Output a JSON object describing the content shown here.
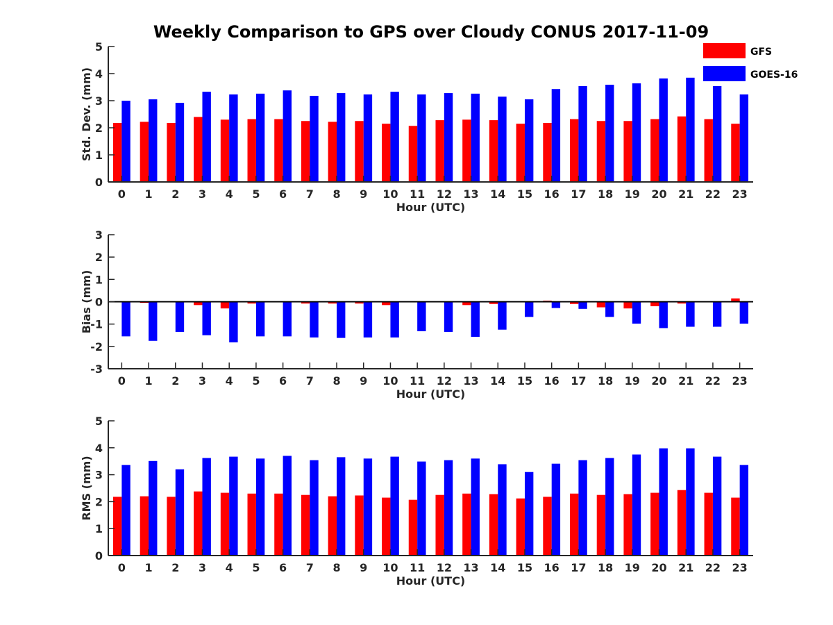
{
  "title": "Weekly Comparison to GPS over Cloudy CONUS 2017-11-09",
  "colors": {
    "GFS": "#ff0000",
    "GOES-16": "#0000ff",
    "axis": "#262626"
  },
  "legend": {
    "placement": "top-right",
    "entries": [
      "GFS",
      "GOES-16"
    ]
  },
  "chart_data": [
    {
      "type": "bar",
      "xlabel": "Hour (UTC)",
      "ylabel": "Std. Dev. (mm)",
      "ylim": [
        0,
        5
      ],
      "yticks": [
        0,
        1,
        2,
        3,
        4,
        5
      ],
      "grid": false,
      "categories": [
        "0",
        "1",
        "2",
        "3",
        "4",
        "5",
        "6",
        "7",
        "8",
        "9",
        "10",
        "11",
        "12",
        "13",
        "14",
        "15",
        "16",
        "17",
        "18",
        "19",
        "20",
        "21",
        "22",
        "23"
      ],
      "series": [
        {
          "name": "GFS",
          "values": [
            2.18,
            2.22,
            2.18,
            2.4,
            2.3,
            2.32,
            2.32,
            2.25,
            2.22,
            2.25,
            2.15,
            2.07,
            2.28,
            2.3,
            2.28,
            2.15,
            2.18,
            2.32,
            2.25,
            2.25,
            2.32,
            2.42,
            2.32,
            2.15
          ]
        },
        {
          "name": "GOES-16",
          "values": [
            3.0,
            3.05,
            2.92,
            3.33,
            3.23,
            3.26,
            3.38,
            3.18,
            3.28,
            3.23,
            3.33,
            3.23,
            3.28,
            3.26,
            3.15,
            3.05,
            3.43,
            3.54,
            3.59,
            3.64,
            3.82,
            3.85,
            3.54,
            3.23
          ]
        }
      ]
    },
    {
      "type": "bar",
      "xlabel": "Hour (UTC)",
      "ylabel": "Bias (mm)",
      "ylim": [
        -3,
        3
      ],
      "yticks": [
        -3,
        -2,
        -1,
        0,
        1,
        2,
        3
      ],
      "grid": false,
      "categories": [
        "0",
        "1",
        "2",
        "3",
        "4",
        "5",
        "6",
        "7",
        "8",
        "9",
        "10",
        "11",
        "12",
        "13",
        "14",
        "15",
        "16",
        "17",
        "18",
        "19",
        "20",
        "21",
        "22",
        "23"
      ],
      "series": [
        {
          "name": "GFS",
          "values": [
            -0.02,
            -0.05,
            -0.03,
            -0.15,
            -0.3,
            -0.08,
            -0.03,
            -0.08,
            -0.08,
            -0.08,
            -0.15,
            -0.03,
            0.03,
            -0.15,
            -0.1,
            -0.02,
            0.05,
            -0.1,
            -0.25,
            -0.3,
            -0.2,
            -0.08,
            -0.03,
            0.15
          ]
        },
        {
          "name": "GOES-16",
          "values": [
            -1.55,
            -1.75,
            -1.35,
            -1.5,
            -1.82,
            -1.55,
            -1.55,
            -1.6,
            -1.62,
            -1.6,
            -1.6,
            -1.32,
            -1.35,
            -1.57,
            -1.25,
            -0.68,
            -0.28,
            -0.32,
            -0.68,
            -0.98,
            -1.18,
            -1.12,
            -1.12,
            -0.98
          ]
        }
      ]
    },
    {
      "type": "bar",
      "xlabel": "Hour (UTC)",
      "ylabel": "RMS (mm)",
      "ylim": [
        0,
        5
      ],
      "yticks": [
        0,
        1,
        2,
        3,
        4,
        5
      ],
      "grid": false,
      "categories": [
        "0",
        "1",
        "2",
        "3",
        "4",
        "5",
        "6",
        "7",
        "8",
        "9",
        "10",
        "11",
        "12",
        "13",
        "14",
        "15",
        "16",
        "17",
        "18",
        "19",
        "20",
        "21",
        "22",
        "23"
      ],
      "series": [
        {
          "name": "GFS",
          "values": [
            2.18,
            2.2,
            2.18,
            2.38,
            2.33,
            2.3,
            2.3,
            2.25,
            2.2,
            2.23,
            2.15,
            2.07,
            2.25,
            2.3,
            2.28,
            2.12,
            2.18,
            2.3,
            2.25,
            2.28,
            2.33,
            2.43,
            2.33,
            2.15
          ]
        },
        {
          "name": "GOES-16",
          "values": [
            3.36,
            3.51,
            3.2,
            3.62,
            3.67,
            3.6,
            3.7,
            3.54,
            3.65,
            3.6,
            3.67,
            3.49,
            3.54,
            3.6,
            3.39,
            3.1,
            3.41,
            3.54,
            3.62,
            3.75,
            3.98,
            3.98,
            3.67,
            3.36
          ]
        }
      ]
    }
  ]
}
